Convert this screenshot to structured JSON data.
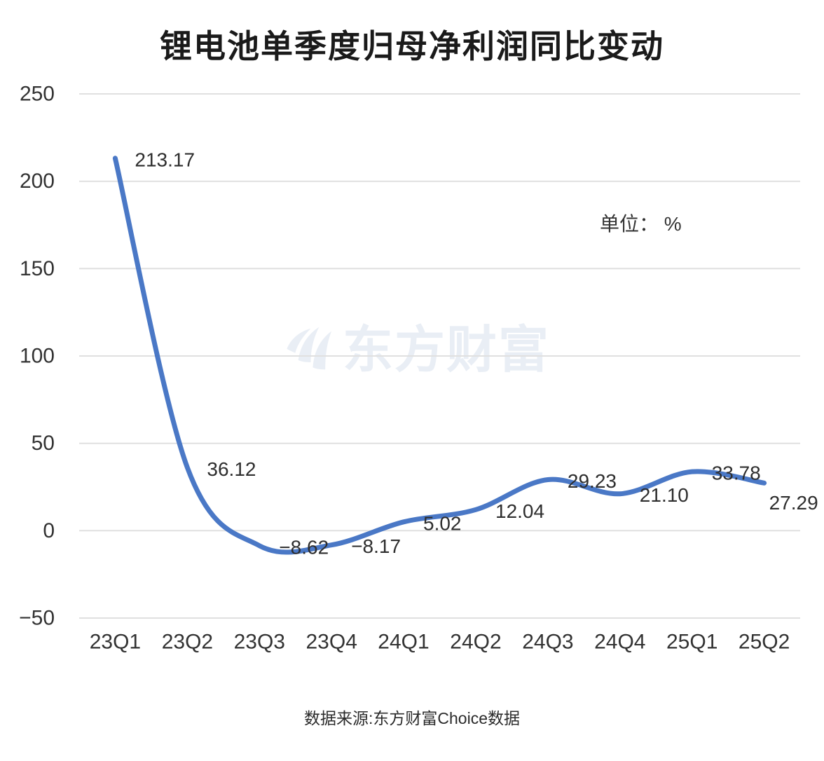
{
  "page": {
    "title": "锂电池单季度归母净利润同比变动",
    "unit_label": "单位： %",
    "watermark_text": "东方财富",
    "source": "数据来源:东方财富Choice数据"
  },
  "colors": {
    "line": "#4a78c6",
    "grid": "#e0e0e0",
    "axis_text": "#333333",
    "data_label_text": "#2e2e2e",
    "title_text": "#1a1a1a",
    "watermark": "#e9eef5"
  },
  "chart_data": {
    "type": "line",
    "title": "锂电池单季度归母净利润同比变动",
    "unit": "%",
    "categories": [
      "23Q1",
      "23Q2",
      "23Q3",
      "23Q4",
      "24Q1",
      "24Q2",
      "24Q3",
      "24Q4",
      "25Q1",
      "25Q2"
    ],
    "values": [
      213.17,
      36.12,
      -8.62,
      -8.17,
      5.02,
      12.04,
      29.23,
      21.1,
      33.78,
      27.29
    ],
    "point_labels": [
      "213.17",
      "36.12",
      "−8.62",
      "−8.17",
      "5.02",
      "12.04",
      "29.23",
      "21.10",
      "33.78",
      "27.29"
    ],
    "xlabel": "",
    "ylabel": "",
    "ylim": [
      -50,
      250
    ],
    "yticks": [
      250,
      200,
      150,
      100,
      50,
      0,
      -50
    ],
    "ytick_labels": [
      "250",
      "200",
      "150",
      "100",
      "50",
      "0",
      "−50"
    ],
    "grid": true,
    "legend_position": "none",
    "smooth": true,
    "source": "数据来源:东方财富Choice数据"
  }
}
